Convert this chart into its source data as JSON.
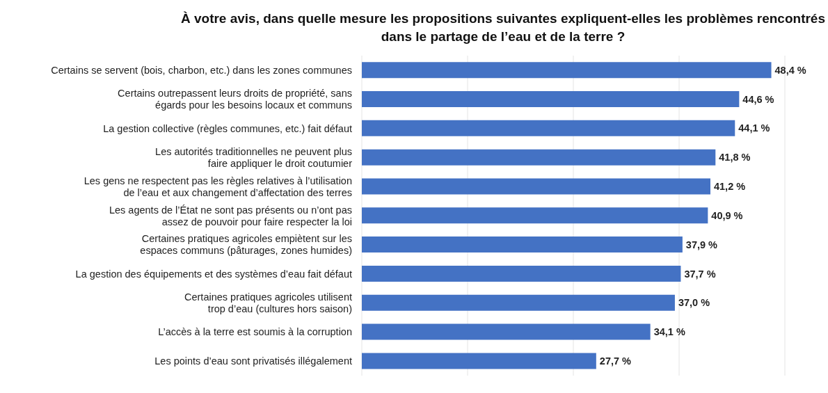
{
  "chart_data": {
    "type": "bar",
    "orientation": "horizontal",
    "title": "À votre avis, dans quelle mesure les propositions suivantes expliquent-elles les problèmes rencontrés dans le partage de l’eau et de la terre ?",
    "categories": [
      "Certains se servent (bois, charbon, etc.) dans les zones communes",
      "Certains outrepassent leurs droits de propriété, sans égards pour les besoins locaux et communs",
      "La gestion collective (règles communes, etc.) fait défaut",
      "Les autorités traditionnelles ne peuvent plus faire appliquer le droit coutumier",
      "Les gens ne respectent pas les règles relatives à l’utilisation de l’eau et aux changement d’affectation des terres",
      "Les agents de l’État ne sont pas présents ou n’ont pas assez de pouvoir pour faire respecter la loi",
      "Certaines pratiques agricoles empiètent sur les espaces communs (pâturages, zones humides)",
      "La gestion des équipements et des systèmes d’eau fait défaut",
      "Certaines pratiques agricoles utilisent trop d’eau (cultures hors saison)",
      "L’accès à la terre est soumis à la corruption",
      "Les points d’eau sont privatisés illégalement"
    ],
    "values": [
      48.4,
      44.6,
      44.1,
      41.8,
      41.2,
      40.9,
      37.9,
      37.7,
      37.0,
      34.1,
      27.7
    ],
    "value_labels": [
      "48,4 %",
      "44,6 %",
      "44,1 %",
      "41,8 %",
      "41,2 %",
      "40,9 %",
      "37,9 %",
      "37,7 %",
      "37,0 %",
      "34,1 %",
      "27,7 %"
    ],
    "color": "#4472c4",
    "xlim": [
      0,
      50
    ],
    "xticks": [
      {
        "value": 0,
        "label": null
      },
      {
        "value": 12.5,
        "label": null
      },
      {
        "value": 25,
        "label": null
      },
      {
        "value": 37.5,
        "label": null
      },
      {
        "value": 50,
        "label": null
      }
    ],
    "grid": "x",
    "legend": false
  }
}
